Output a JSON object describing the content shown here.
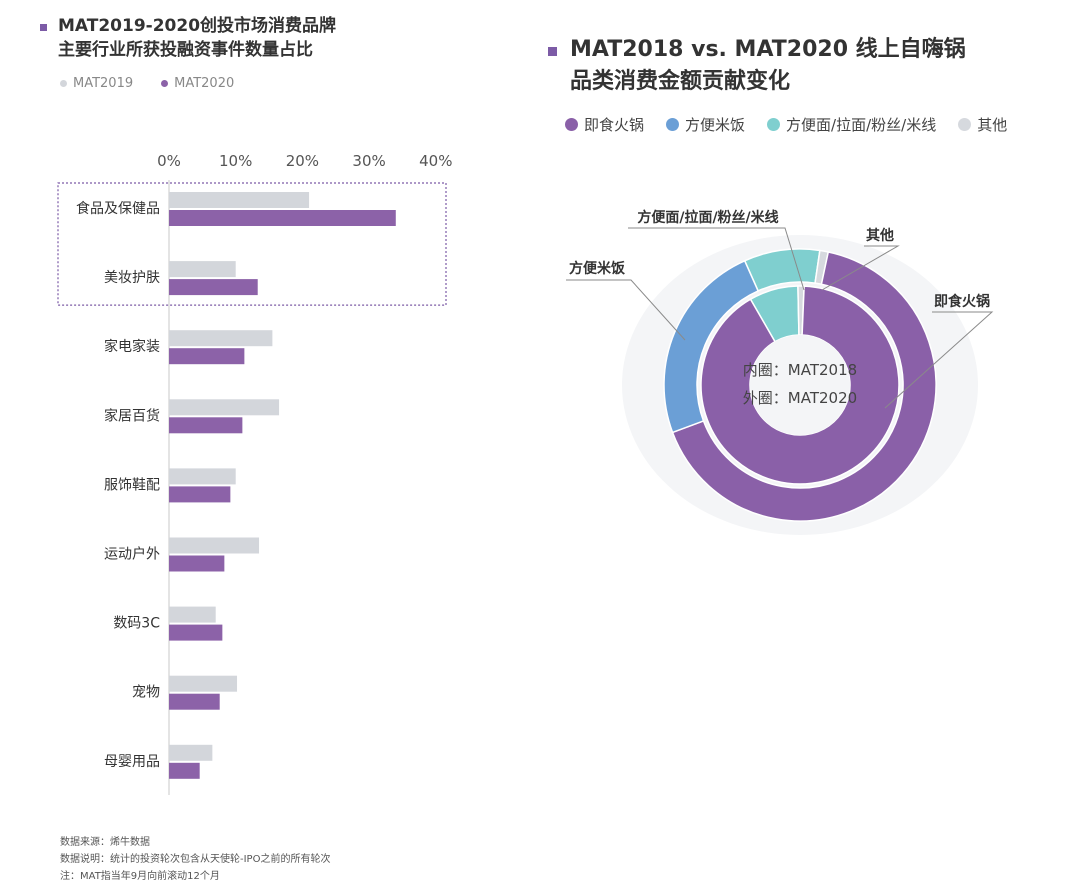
{
  "left_title": {
    "line1": "MAT2019-2020创投市场消费品牌",
    "line2": "主要行业所获投融资事件数量占比"
  },
  "right_title": {
    "line1": "MAT2018 vs. MAT2020 线上自嗨锅",
    "line2": "品类消费金额贡献变化"
  },
  "colors": {
    "accent": "#7c5ba6",
    "mat2019": "#d3d6db",
    "mat2020": "#8c62a8",
    "hotpot": "#8a60a8",
    "rice": "#6b9fd6",
    "noodle": "#7fcfcf",
    "other": "#d6d9de"
  },
  "footnotes": [
    "数据来源：烯牛数据",
    "数据说明：统计的投资轮次包含从天使轮-IPO之前的所有轮次",
    "注：MAT指当年9月向前滚动12个月"
  ],
  "chart_data": [
    {
      "type": "bar",
      "orientation": "horizontal",
      "title": "MAT2019-2020创投市场消费品牌主要行业所获投融资事件数量占比",
      "categories": [
        "食品及保健品",
        "美妆护肤",
        "家电家装",
        "家居百货",
        "服饰鞋配",
        "运动户外",
        "数码3C",
        "宠物",
        "母婴用品"
      ],
      "series": [
        {
          "name": "MAT2019",
          "values": [
            21,
            10,
            15.5,
            16.5,
            10,
            13.5,
            7,
            10.2,
            6.5
          ]
        },
        {
          "name": "MAT2020",
          "values": [
            34,
            13.3,
            11.3,
            11,
            9.2,
            8.3,
            8,
            7.6,
            4.6
          ]
        }
      ],
      "xticks": [
        "0%",
        "10%",
        "20%",
        "30%",
        "40%"
      ],
      "xlim": [
        0,
        40
      ],
      "highlighted_categories": [
        "食品及保健品",
        "美妆护肤"
      ],
      "legend": "top-left"
    },
    {
      "type": "pie",
      "variant": "nested-donut",
      "title": "MAT2018 vs. MAT2020 线上自嗨锅品类消费金额贡献变化",
      "categories": [
        "即食火锅",
        "方便米饭",
        "方便面/拉面/粉丝/米线",
        "其他"
      ],
      "series": [
        {
          "name": "内圈：MAT2018",
          "values": [
            91,
            0,
            8,
            1
          ]
        },
        {
          "name": "外圈：MAT2020",
          "values": [
            66,
            24,
            9,
            1
          ]
        }
      ],
      "center_labels": [
        "内圈：MAT2018",
        "外圈：MAT2020"
      ],
      "callouts": [
        "方便面/拉面/粉丝/米线",
        "其他",
        "方便米饭",
        "即食火锅"
      ],
      "legend": "top"
    }
  ]
}
